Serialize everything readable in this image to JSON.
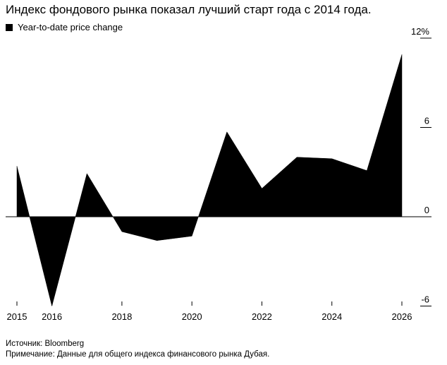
{
  "title": "Индекс фондового рынка показал лучший старт года с 2014 года.",
  "legend": {
    "label": "Year-to-date price change"
  },
  "footer": {
    "source": "Источник: Bloomberg",
    "note": "Примечание: Данные для общего индекса финансового рынка Дубая."
  },
  "chart_data": {
    "type": "area",
    "series": [
      {
        "name": "Year-to-date price change",
        "x": [
          2015,
          2016,
          2017,
          2018,
          2019,
          2020,
          2021,
          2022,
          2023,
          2024,
          2025,
          2026
        ],
        "values": [
          3.4,
          -6.0,
          2.9,
          -1.0,
          -1.6,
          -1.3,
          5.7,
          1.9,
          4.0,
          3.9,
          3.1,
          10.9
        ]
      }
    ],
    "x_ticks": [
      "2015",
      "2016",
      "2018",
      "2020",
      "2022",
      "2024",
      "2026"
    ],
    "x_tick_values": [
      2015,
      2016,
      2018,
      2020,
      2022,
      2024,
      2026
    ],
    "y_ticks": [
      "12%",
      "6",
      "0",
      "-6"
    ],
    "y_tick_values": [
      12,
      6,
      0,
      -6
    ],
    "xlim": [
      2015,
      2026
    ],
    "ylim": [
      -6,
      12
    ],
    "color": "#000000",
    "grid": false
  }
}
